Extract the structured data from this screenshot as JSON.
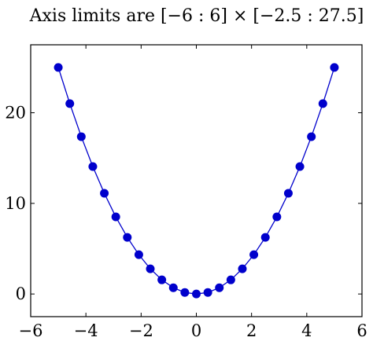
{
  "chart_data": {
    "type": "line",
    "title": "Axis limits are [−6 : 6] × [−2.5 : 27.5]",
    "xlabel": "",
    "ylabel": "",
    "xlim": [
      -6,
      6
    ],
    "ylim": [
      -2.5,
      27.5
    ],
    "grid": false,
    "xticks": [
      -6,
      -4,
      -2,
      0,
      2,
      4,
      6
    ],
    "xtick_labels": [
      "−6",
      "−4",
      "−2",
      "0",
      "2",
      "4",
      "6"
    ],
    "yticks": [
      0,
      10,
      20
    ],
    "ytick_labels": [
      "0",
      "10",
      "20"
    ],
    "series": [
      {
        "color": "#0000cc",
        "marker": "circle",
        "x": [
          -5,
          -4.583,
          -4.167,
          -3.75,
          -3.333,
          -2.917,
          -2.5,
          -2.083,
          -1.667,
          -1.25,
          -0.833,
          -0.417,
          0,
          0.417,
          0.833,
          1.25,
          1.667,
          2.083,
          2.5,
          2.917,
          3.333,
          3.75,
          4.167,
          4.583,
          5
        ],
        "y": [
          25,
          21.01,
          17.36,
          14.06,
          11.11,
          8.51,
          6.25,
          4.34,
          2.78,
          1.56,
          0.69,
          0.17,
          0,
          0.17,
          0.69,
          1.56,
          2.78,
          4.34,
          6.25,
          8.51,
          11.11,
          14.06,
          17.36,
          21.01,
          25
        ]
      }
    ]
  }
}
